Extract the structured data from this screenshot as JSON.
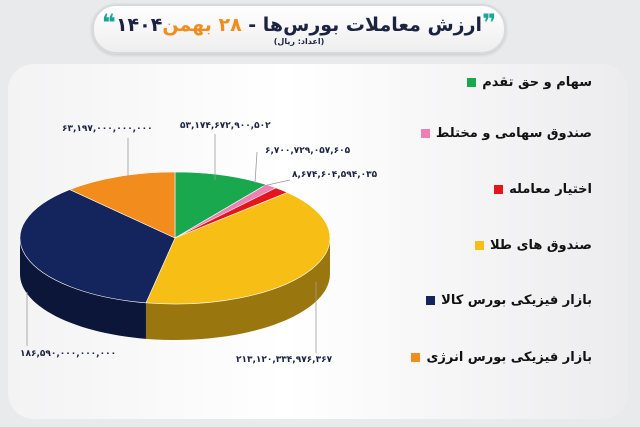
{
  "header": {
    "title_main": "ارزش معاملات بورس‌ها -",
    "title_date": "۲۸ بهمن",
    "title_year": "۱۴۰۴",
    "subtitle": "(اعداد: ریال)"
  },
  "chart_data": {
    "type": "pie",
    "style": "3d",
    "legend_position": "right",
    "unit": "ریال",
    "slices": [
      {
        "name": "سهام و حق تقدم",
        "value": 53174672900502,
        "label": "۵۳,۱۷۴,۶۷۲,۹۰۰,۵۰۲",
        "color": "#1aa84f"
      },
      {
        "name": "صندوق سهامی و مختلط",
        "value": 6700729057605,
        "label": "۶,۷۰۰,۷۲۹,۰۵۷,۶۰۵",
        "color": "#ef7fb4"
      },
      {
        "name": "اختیار معامله",
        "value": 8674604594035,
        "label": "۸,۶۷۴,۶۰۴,۵۹۴,۰۳۵",
        "color": "#e3161b"
      },
      {
        "name": "صندوق های طلا",
        "value": 213120334976367,
        "label": "۲۱۳,۱۲۰,۳۳۴,۹۷۶,۳۶۷",
        "color": "#f7be16"
      },
      {
        "name": "بازار فیزیکی بورس کالا",
        "value": 186590000000000,
        "label": "۱۸۶,۵۹۰,۰۰۰,۰۰۰,۰۰۰",
        "color": "#14245c"
      },
      {
        "name": "بازار فیزیکی بورس انرژی",
        "value": 63197000000000,
        "label": "۶۳,۱۹۷,۰۰۰,۰۰۰,۰۰۰",
        "color": "#f28c1c"
      }
    ]
  }
}
